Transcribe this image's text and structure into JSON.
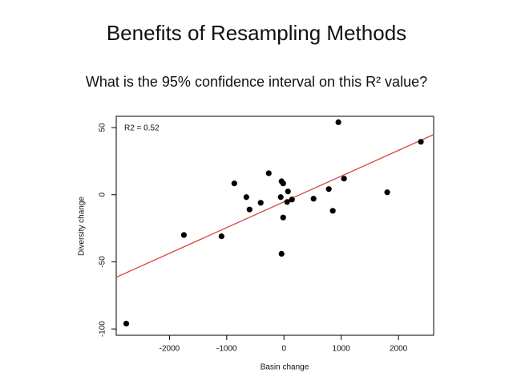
{
  "chart_data": {
    "type": "scatter",
    "title": "Benefits of Resampling Methods",
    "subtitle": "What is the 95% confidence interval on this R² value?",
    "annotation": "R2 = 0.52",
    "x_label": "Basin change",
    "y_label": "Diversity change",
    "xlim": [
      -2930,
      2615
    ],
    "ylim": [
      -104.7,
      58.4
    ],
    "xticks": [
      -2000,
      -1000,
      0,
      1000,
      2000
    ],
    "yticks": [
      -100,
      -50,
      0,
      50
    ],
    "color": "#000000",
    "x": [
      -2755,
      -1748,
      -1091,
      -867,
      -657,
      -601,
      -406,
      -266,
      -56,
      -42,
      -14,
      -14,
      -42,
      70,
      56,
      140,
      517,
      783,
      853,
      951,
      1049,
      1804,
      2392
    ],
    "values": [
      -96,
      -30,
      -31,
      8.4,
      -1.8,
      -11,
      -6,
      16,
      -1.8,
      10,
      8.4,
      -17,
      -44,
      2.4,
      -5.4,
      -3.6,
      -3,
      4.2,
      -12,
      54,
      12,
      1.8,
      39.4
    ],
    "fit_line": {
      "color": "#d9463c",
      "x": [
        -2930,
        2615
      ],
      "y": [
        -61.5,
        44.8
      ]
    }
  }
}
